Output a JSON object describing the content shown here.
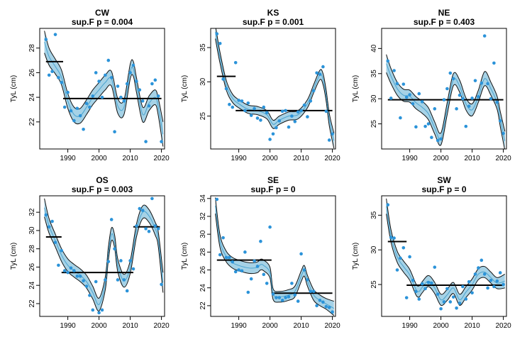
{
  "colors": {
    "band": "#a6d2e6",
    "band_edge": "#111111",
    "mean_line": "#4aa3cf",
    "points": "#2b93d9",
    "step": "#000000"
  },
  "chart_data": [
    {
      "type": "scatter",
      "title": "CW",
      "subtitle": "sup.F p = 0.004",
      "xlabel": "",
      "ylabel": "TyL (cm)",
      "xlim": [
        1981,
        2021
      ],
      "ylim": [
        19.8,
        29.6
      ],
      "xticks": [
        1990,
        2000,
        2010,
        2020
      ],
      "yticks": [
        22,
        24,
        26,
        28
      ],
      "points": {
        "x": [
          1983,
          1984,
          1985,
          1986,
          1987,
          1988,
          1989,
          1990,
          1991,
          1992,
          1993,
          1994,
          1995,
          1996,
          1997,
          1998,
          1999,
          2000,
          2001,
          2002,
          2003,
          2004,
          2005,
          2006,
          2007,
          2008,
          2009,
          2010,
          2011,
          2012,
          2013,
          2014,
          2015,
          2016,
          2017,
          2018,
          2019,
          2020
        ],
        "y": [
          28.7,
          25.8,
          26.1,
          29.1,
          25.6,
          25.2,
          23.2,
          24.4,
          22.9,
          22.1,
          23.1,
          22.5,
          21.4,
          23.5,
          23.2,
          24.1,
          26.0,
          25.3,
          24.0,
          25.8,
          27.0,
          25.6,
          21.2,
          24.9,
          24.0,
          23.7,
          25.1,
          26.0,
          26.6,
          25.3,
          24.6,
          23.7,
          20.4,
          23.3,
          25.1,
          25.4,
          24.1,
          20.4
        ]
      },
      "fit": {
        "x": [
          1982.5,
          1984,
          1986,
          1988,
          1990,
          1992,
          1994,
          1996,
          1998,
          2000,
          2002,
          2004,
          2006,
          2008,
          2010,
          2011,
          2012,
          2014,
          2016,
          2018,
          2019,
          2020.5
        ],
        "y": [
          28.5,
          27.3,
          26.5,
          25.6,
          23.7,
          22.6,
          22.5,
          23.2,
          24.0,
          24.6,
          25.2,
          25.5,
          23.3,
          23.2,
          26.1,
          26.3,
          25.0,
          22.6,
          23.5,
          24.0,
          23.2,
          21.0
        ],
        "se": [
          0.9,
          0.7,
          0.6,
          0.6,
          0.6,
          0.6,
          0.6,
          0.6,
          0.6,
          0.6,
          0.6,
          0.6,
          0.6,
          0.6,
          0.6,
          0.6,
          0.6,
          0.6,
          0.6,
          0.6,
          0.7,
          1.0
        ]
      },
      "breakpoints": [
        {
          "x_start": 1983,
          "x_end": 1988.5,
          "y": 26.9
        },
        {
          "x_start": 1988.5,
          "x_end": 2020,
          "y": 23.9
        }
      ]
    },
    {
      "type": "scatter",
      "title": "KS",
      "subtitle": "sup.F p = 0.001",
      "xlabel": "",
      "ylabel": "TyL (cm)",
      "xlim": [
        1981,
        2021
      ],
      "ylim": [
        20.2,
        37.8
      ],
      "xticks": [
        1990,
        2000,
        2010,
        2020
      ],
      "yticks": [
        25,
        30,
        35
      ],
      "points": {
        "x": [
          1983,
          1984,
          1985,
          1986,
          1987,
          1988,
          1989,
          1990,
          1991,
          1992,
          1993,
          1994,
          1995,
          1996,
          1997,
          1998,
          1999,
          2000,
          2001,
          2002,
          2003,
          2004,
          2005,
          2006,
          2007,
          2008,
          2009,
          2010,
          2011,
          2012,
          2013,
          2014,
          2015,
          2016,
          2017,
          2018,
          2019,
          2020
        ],
        "y": [
          37.0,
          35.6,
          30.4,
          29.0,
          26.7,
          26.3,
          32.8,
          27.3,
          27.2,
          25.8,
          26.9,
          25.1,
          26.1,
          24.7,
          24.4,
          26.3,
          25.5,
          21.6,
          22.4,
          23.3,
          24.3,
          25.7,
          25.8,
          23.4,
          25.0,
          24.2,
          25.6,
          25.8,
          26.6,
          24.9,
          27.2,
          28.7,
          31.3,
          31.1,
          32.2,
          25.7,
          21.5,
          22.4
        ]
      },
      "fit": {
        "x": [
          1982.5,
          1984,
          1986,
          1988,
          1990,
          1993,
          1996,
          1999,
          2001,
          2003,
          2006,
          2009,
          2012,
          2014,
          2016,
          2017,
          2018,
          2019,
          2020.5
        ],
        "y": [
          37.3,
          33.5,
          29.5,
          27.6,
          26.8,
          26.0,
          25.8,
          25.2,
          23.8,
          24.4,
          25.0,
          25.2,
          26.8,
          29.0,
          31.0,
          30.4,
          28.0,
          24.5,
          21.4
        ],
        "se": [
          1.0,
          0.8,
          0.7,
          0.6,
          0.6,
          0.6,
          0.6,
          0.6,
          0.6,
          0.6,
          0.6,
          0.6,
          0.6,
          0.6,
          0.7,
          0.8,
          0.8,
          0.9,
          1.1
        ]
      },
      "breakpoints": [
        {
          "x_start": 1983,
          "x_end": 1989,
          "y": 30.8
        },
        {
          "x_start": 1989,
          "x_end": 2020,
          "y": 25.8
        }
      ]
    },
    {
      "type": "scatter",
      "title": "NE",
      "subtitle": "sup.F p = 0.403",
      "xlabel": "",
      "ylabel": "TyL (cm)",
      "xlim": [
        1981,
        2021
      ],
      "ylim": [
        20.0,
        44.0
      ],
      "xticks": [
        1990,
        2000,
        2010,
        2020
      ],
      "yticks": [
        25,
        30,
        35,
        40
      ],
      "points": {
        "x": [
          1983,
          1984,
          1985,
          1986,
          1987,
          1988,
          1989,
          1990,
          1991,
          1992,
          1993,
          1994,
          1995,
          1996,
          1997,
          1998,
          1999,
          2000,
          2001,
          2002,
          2003,
          2004,
          2005,
          2006,
          2007,
          2008,
          2009,
          2010,
          2011,
          2012,
          2013,
          2014,
          2015,
          2016,
          2017,
          2018,
          2019,
          2020
        ],
        "y": [
          37.5,
          30.1,
          35.6,
          33.0,
          26.2,
          32.9,
          30.3,
          30.8,
          29.0,
          24.4,
          31.0,
          29.4,
          24.5,
          25.0,
          22.3,
          28.0,
          21.7,
          22.0,
          29.8,
          32.0,
          35.1,
          34.0,
          28.0,
          30.7,
          30.0,
          24.5,
          28.5,
          30.1,
          33.6,
          30.4,
          33.1,
          42.5,
          33.0,
          30.0,
          37.1,
          29.3,
          25.6,
          23.1
        ]
      },
      "fit": {
        "x": [
          1982.5,
          1984,
          1986,
          1988,
          1990,
          1992,
          1994,
          1996,
          1998,
          2000,
          2002,
          2004,
          2006,
          2008,
          2010,
          2012,
          2014,
          2016,
          2018,
          2019,
          2020.5
        ],
        "y": [
          37.0,
          34.5,
          32.0,
          30.7,
          30.5,
          29.2,
          28.3,
          27.0,
          24.2,
          22.0,
          28.0,
          33.8,
          32.5,
          29.0,
          27.8,
          30.5,
          34.0,
          32.0,
          29.2,
          26.0,
          21.6
        ],
        "se": [
          1.8,
          1.5,
          1.3,
          1.2,
          1.2,
          1.2,
          1.2,
          1.2,
          1.2,
          1.2,
          1.2,
          1.2,
          1.2,
          1.2,
          1.2,
          1.2,
          1.4,
          1.3,
          1.3,
          1.5,
          1.9
        ]
      },
      "breakpoints": [
        {
          "x_start": 1983,
          "x_end": 2020,
          "y": 29.8
        }
      ]
    },
    {
      "type": "scatter",
      "title": "OS",
      "subtitle": "sup.F p = 0.003",
      "xlabel": "",
      "ylabel": "TyL (cm)",
      "xlim": [
        1981,
        2021
      ],
      "ylim": [
        20.6,
        33.8
      ],
      "xticks": [
        1990,
        2000,
        2010,
        2020
      ],
      "yticks": [
        22,
        24,
        26,
        28,
        30,
        32
      ],
      "points": {
        "x": [
          1983,
          1984,
          1985,
          1986,
          1987,
          1988,
          1989,
          1990,
          1991,
          1992,
          1993,
          1994,
          1995,
          1996,
          1997,
          1998,
          1999,
          2000,
          2001,
          2002,
          2003,
          2004,
          2005,
          2006,
          2007,
          2008,
          2009,
          2010,
          2011,
          2012,
          2013,
          2014,
          2015,
          2016,
          2017,
          2018,
          2019,
          2020
        ],
        "y": [
          31.7,
          30.4,
          31.0,
          28.7,
          26.2,
          27.8,
          25.6,
          25.4,
          25.9,
          25.6,
          25.0,
          25.0,
          24.5,
          23.9,
          22.9,
          21.3,
          24.4,
          21.0,
          21.3,
          24.6,
          26.6,
          31.2,
          28.0,
          24.6,
          26.7,
          24.6,
          23.4,
          26.7,
          25.8,
          30.5,
          32.4,
          32.2,
          30.2,
          29.9,
          33.5,
          30.5,
          30.2,
          24.1
        ]
      },
      "fit": {
        "x": [
          1982.5,
          1984,
          1986,
          1988,
          1990,
          1992,
          1994,
          1996,
          1998,
          2000,
          2002,
          2003,
          2004,
          2005,
          2006,
          2008,
          2010,
          2012,
          2014,
          2016,
          2018,
          2019,
          2020.5
        ],
        "y": [
          32.5,
          30.5,
          28.9,
          27.3,
          26.2,
          25.6,
          25.1,
          24.4,
          23.2,
          21.9,
          24.2,
          27.5,
          29.6,
          28.8,
          26.2,
          24.5,
          26.0,
          30.0,
          32.0,
          31.6,
          30.2,
          29.0,
          24.3
        ],
        "se": [
          1.0,
          0.8,
          0.7,
          0.7,
          0.7,
          0.7,
          0.7,
          0.7,
          0.7,
          0.7,
          0.7,
          0.7,
          0.7,
          0.7,
          0.7,
          0.7,
          0.7,
          0.7,
          0.7,
          0.7,
          0.7,
          0.8,
          1.1
        ]
      },
      "breakpoints": [
        {
          "x_start": 1983,
          "x_end": 1988,
          "y": 29.3
        },
        {
          "x_start": 1988,
          "x_end": 2011,
          "y": 25.4
        },
        {
          "x_start": 2011,
          "x_end": 2019.5,
          "y": 30.4
        }
      ]
    },
    {
      "type": "scatter",
      "title": "SE",
      "subtitle": "sup.F p = 0",
      "xlabel": "",
      "ylabel": "TyL (cm)",
      "xlim": [
        1981,
        2021
      ],
      "ylim": [
        20.8,
        34.3
      ],
      "xticks": [
        1990,
        2000,
        2010,
        2020
      ],
      "yticks": [
        22,
        24,
        26,
        28,
        30,
        32,
        34
      ],
      "points": {
        "x": [
          1983,
          1984,
          1985,
          1986,
          1987,
          1988,
          1989,
          1990,
          1991,
          1992,
          1993,
          1994,
          1995,
          1996,
          1997,
          1998,
          1999,
          2000,
          2001,
          2002,
          2003,
          2004,
          2005,
          2006,
          2007,
          2008,
          2009,
          2010,
          2011,
          2012,
          2013,
          2014,
          2015,
          2016,
          2017,
          2018,
          2019,
          2020
        ],
        "y": [
          33.9,
          27.7,
          29.6,
          27.4,
          27.4,
          26.9,
          25.8,
          26.0,
          25.9,
          28.0,
          23.5,
          25.0,
          27.0,
          26.4,
          29.2,
          25.5,
          24.5,
          30.8,
          23.3,
          22.9,
          22.9,
          22.6,
          22.9,
          23.0,
          24.5,
          23.2,
          22.5,
          27.8,
          26.0,
          24.9,
          23.6,
          23.6,
          22.0,
          22.6,
          22.4,
          21.9,
          21.8,
          21.3
        ]
      },
      "fit": {
        "x": [
          1982.5,
          1984,
          1986,
          1988,
          1990,
          1992,
          1994,
          1996,
          1997,
          1998,
          2000,
          2001,
          2003,
          2006,
          2008,
          2010,
          2011,
          2012,
          2014,
          2016,
          2018,
          2020.5
        ],
        "y": [
          33.2,
          29.2,
          27.5,
          26.8,
          26.5,
          26.3,
          26.2,
          26.3,
          26.6,
          26.5,
          25.7,
          23.3,
          23.0,
          23.2,
          23.6,
          25.3,
          25.9,
          24.8,
          23.2,
          22.6,
          22.2,
          21.7
        ],
        "se": [
          0.9,
          0.7,
          0.6,
          0.6,
          0.6,
          0.6,
          0.6,
          0.6,
          0.6,
          0.6,
          0.6,
          0.6,
          0.6,
          0.6,
          0.6,
          0.6,
          0.6,
          0.6,
          0.6,
          0.6,
          0.6,
          0.8
        ]
      },
      "breakpoints": [
        {
          "x_start": 1983,
          "x_end": 2000.5,
          "y": 27.1
        },
        {
          "x_start": 2000.5,
          "x_end": 2020,
          "y": 23.4
        }
      ]
    },
    {
      "type": "scatter",
      "title": "SW",
      "subtitle": "sup.F p = 0",
      "xlabel": "",
      "ylabel": "TyL (cm)",
      "xlim": [
        1981,
        2021
      ],
      "ylim": [
        20.4,
        37.8
      ],
      "xticks": [
        1990,
        2000,
        2010,
        2020
      ],
      "yticks": [
        25,
        30,
        35
      ],
      "points": {
        "x": [
          1983,
          1984,
          1985,
          1986,
          1987,
          1988,
          1989,
          1990,
          1991,
          1992,
          1993,
          1994,
          1995,
          1996,
          1997,
          1998,
          1999,
          2000,
          2001,
          2002,
          2003,
          2004,
          2005,
          2006,
          2007,
          2008,
          2009,
          2010,
          2011,
          2012,
          2013,
          2014,
          2015,
          2016,
          2017,
          2018,
          2019,
          2020
        ],
        "y": [
          36.5,
          31.8,
          31.7,
          27.1,
          28.8,
          30.3,
          23.1,
          29.0,
          25.6,
          24.0,
          22.9,
          25.1,
          24.4,
          25.3,
          25.2,
          27.5,
          23.6,
          21.5,
          22.5,
          24.4,
          22.5,
          23.2,
          21.6,
          22.3,
          24.7,
          22.9,
          25.4,
          23.8,
          26.5,
          27.4,
          28.5,
          26.5,
          24.5,
          25.6,
          24.7,
          25.5,
          26.7,
          25.0
        ]
      },
      "fit": {
        "x": [
          1982.5,
          1984,
          1986,
          1988,
          1990,
          1992,
          1993,
          1994,
          1996,
          1998,
          2000,
          2002,
          2004,
          2006,
          2008,
          2010,
          2012,
          2014,
          2016,
          2018,
          2020.5
        ],
        "y": [
          36.3,
          32.0,
          29.0,
          27.6,
          26.4,
          24.3,
          24.0,
          24.6,
          25.5,
          24.5,
          22.8,
          23.5,
          24.5,
          22.8,
          23.9,
          25.0,
          26.5,
          26.8,
          26.0,
          25.2,
          25.5
        ],
        "se": [
          1.1,
          0.9,
          0.8,
          0.8,
          0.8,
          0.8,
          0.8,
          0.8,
          0.8,
          0.8,
          0.8,
          0.8,
          0.8,
          0.8,
          0.8,
          0.8,
          0.8,
          0.8,
          0.8,
          0.8,
          1.0
        ]
      },
      "breakpoints": [
        {
          "x_start": 1983,
          "x_end": 1989,
          "y": 31.2
        },
        {
          "x_start": 1989,
          "x_end": 2020,
          "y": 24.9
        }
      ]
    }
  ]
}
